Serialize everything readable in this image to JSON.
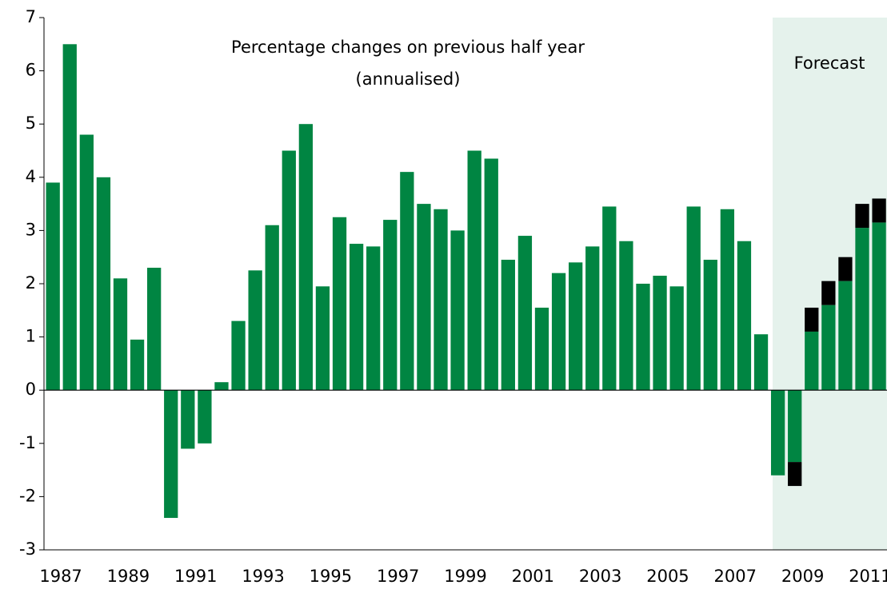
{
  "chart_data": {
    "type": "bar",
    "annotations": [
      "Percentage changes on previous half year",
      "(annualised)",
      "Forecast"
    ],
    "categories": [
      "1987",
      null,
      null,
      null,
      "1989",
      null,
      null,
      null,
      "1991",
      null,
      null,
      null,
      "1993",
      null,
      null,
      null,
      "1995",
      null,
      null,
      null,
      "1997",
      null,
      null,
      null,
      "1999",
      null,
      null,
      null,
      "2001",
      null,
      null,
      null,
      "2003",
      null,
      null,
      null,
      "2005",
      null,
      null,
      null,
      "2007",
      null,
      null,
      null,
      "2009",
      null,
      null,
      null,
      "2011",
      null
    ],
    "series": [
      {
        "color": "#008542",
        "values": [
          3.9,
          6.5,
          4.8,
          4.0,
          2.1,
          0.95,
          2.3,
          -2.4,
          -1.1,
          -1.0,
          0.15,
          1.3,
          2.25,
          3.1,
          4.5,
          5.0,
          1.95,
          3.25,
          2.75,
          2.7,
          3.2,
          4.1,
          3.5,
          3.4,
          3.0,
          4.5,
          4.35,
          2.45,
          2.9,
          1.55,
          2.2,
          2.4,
          2.7,
          3.45,
          2.8,
          2.0,
          2.15,
          1.95,
          3.45,
          2.45,
          3.4,
          2.8,
          1.05,
          -1.6,
          -1.35,
          1.1,
          1.6,
          2.05,
          3.05,
          3.15
        ]
      },
      {
        "color": "#000000",
        "values": [
          null,
          null,
          null,
          null,
          null,
          null,
          null,
          null,
          null,
          null,
          null,
          null,
          null,
          null,
          null,
          null,
          null,
          null,
          null,
          null,
          null,
          null,
          null,
          null,
          null,
          null,
          null,
          null,
          null,
          null,
          null,
          null,
          null,
          null,
          null,
          null,
          null,
          null,
          null,
          null,
          null,
          null,
          null,
          null,
          -0.45,
          0.45,
          0.45,
          0.45,
          0.45,
          0.45
        ]
      }
    ],
    "ylim": [
      -3,
      7
    ],
    "yticks": [
      -3,
      -2,
      -1,
      0,
      1,
      2,
      3,
      4,
      5,
      6,
      7
    ]
  }
}
